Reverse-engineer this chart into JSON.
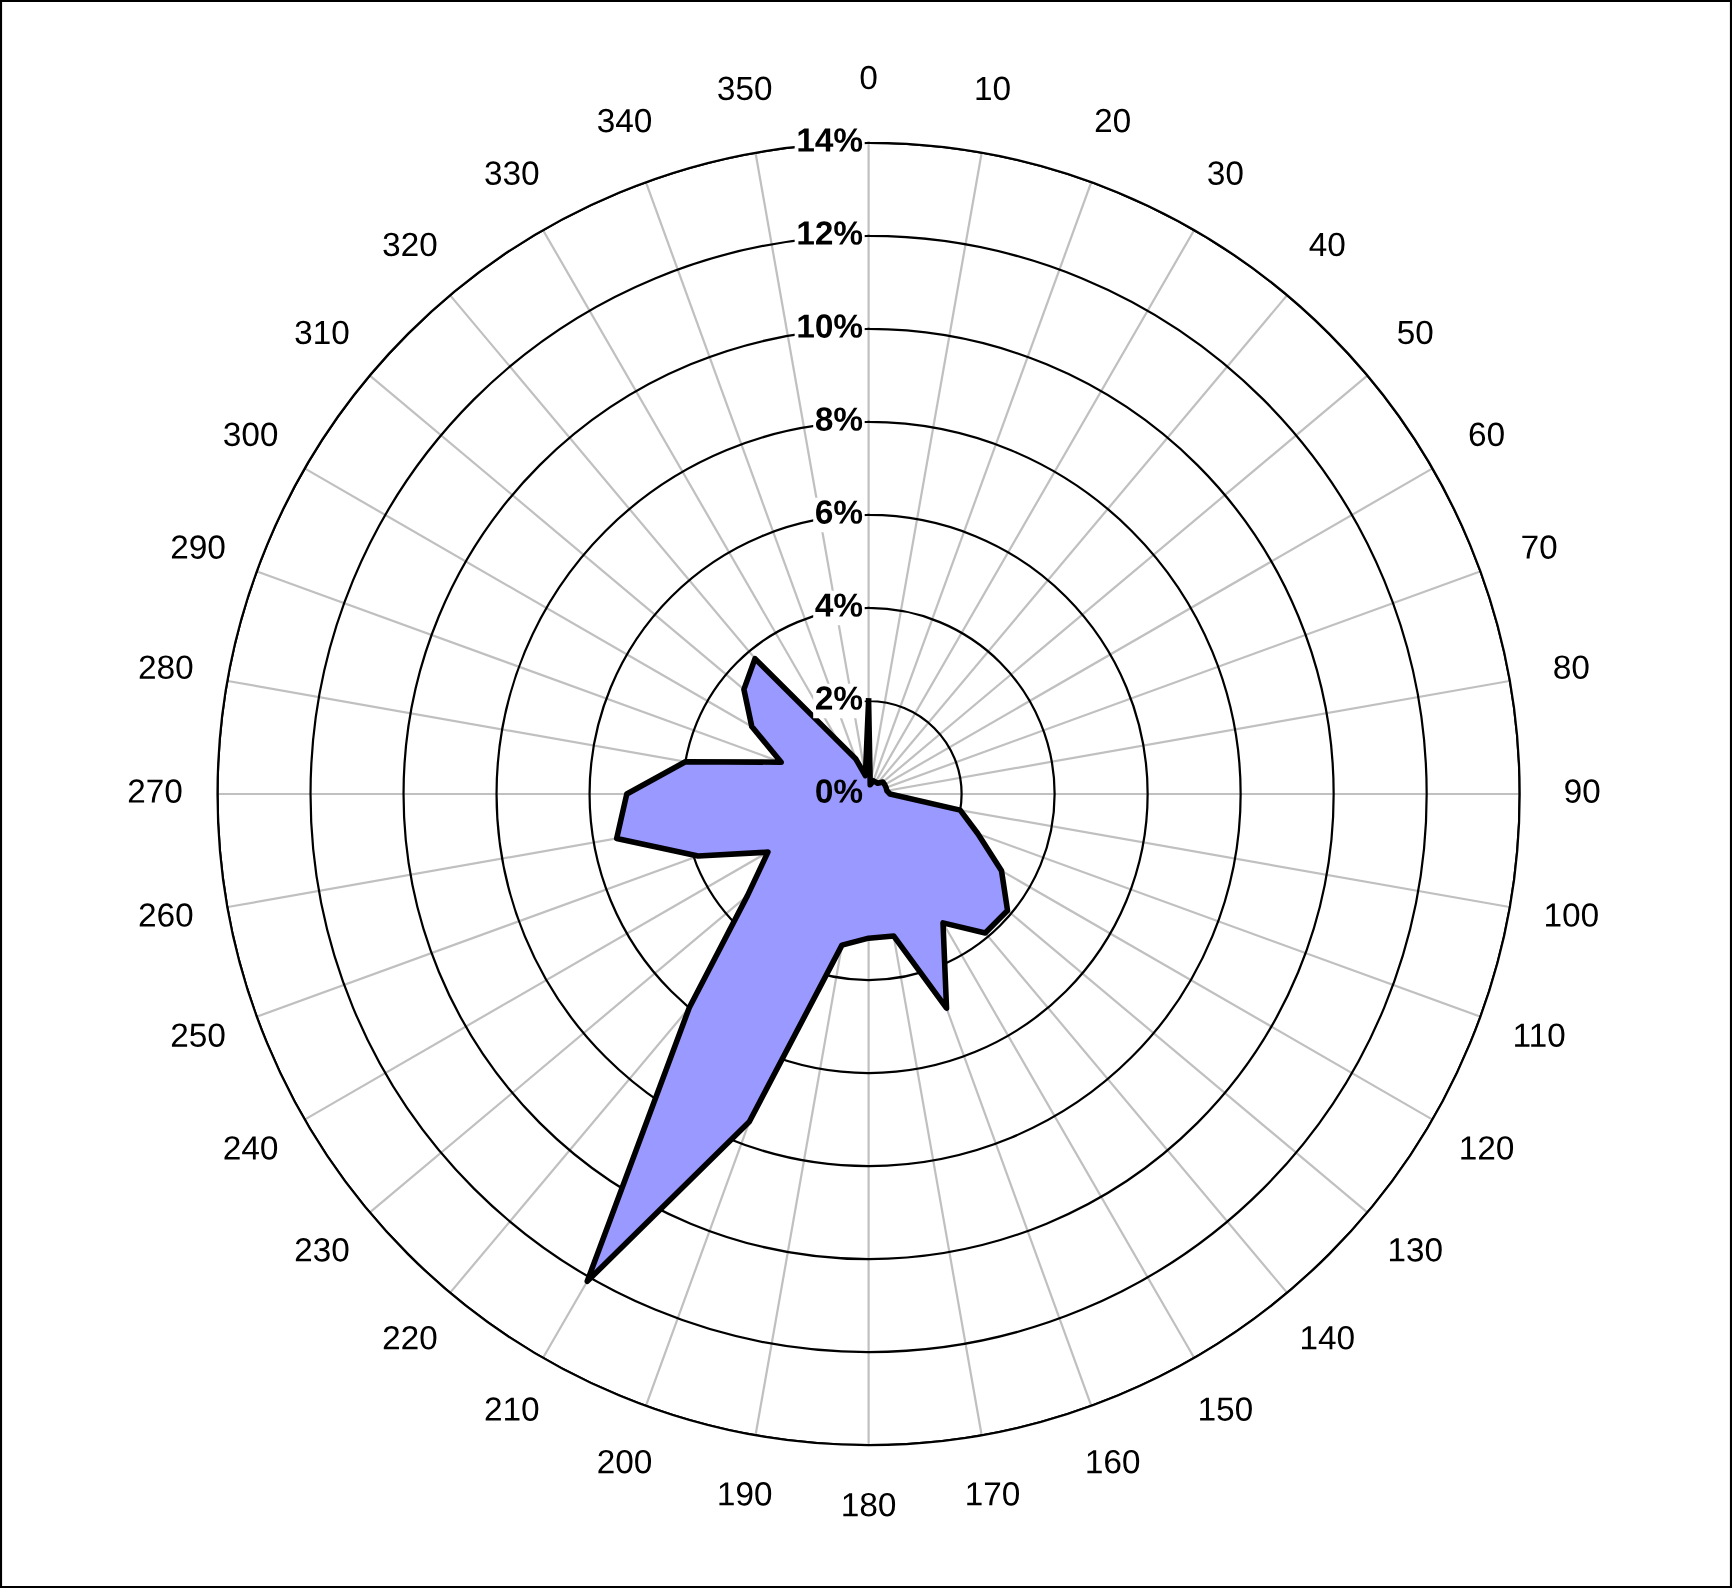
{
  "chart_data": {
    "type": "radar",
    "categories": [
      "0",
      "10",
      "20",
      "30",
      "40",
      "50",
      "60",
      "70",
      "80",
      "90",
      "100",
      "110",
      "120",
      "130",
      "140",
      "150",
      "160",
      "170",
      "180",
      "190",
      "200",
      "210",
      "220",
      "230",
      "240",
      "250",
      "260",
      "270",
      "280",
      "290",
      "300",
      "310",
      "320",
      "330",
      "340",
      "350"
    ],
    "series": [
      {
        "color": "#9999ff",
        "values": [
          2.0,
          0.2,
          0.3,
          0.3,
          0.3,
          0.4,
          0.4,
          0.4,
          0.4,
          0.46,
          2.0,
          2.5,
          3.3,
          3.9,
          3.9,
          3.2,
          4.9,
          3.1,
          3.1,
          3.3,
          7.5,
          12.1,
          6.0,
          3.4,
          2.5,
          3.9,
          5.5,
          5.2,
          4.0,
          2.0,
          2.9,
          3.5,
          3.8,
          1.3,
          0.8,
          0.4
        ]
      }
    ],
    "ylim": [
      0,
      14
    ],
    "yticks": [
      {
        "value": 0,
        "label": "0%"
      },
      {
        "value": 2,
        "label": "2%"
      },
      {
        "value": 4,
        "label": "4%"
      },
      {
        "value": 6,
        "label": "6%"
      },
      {
        "value": 8,
        "label": "8%"
      },
      {
        "value": 10,
        "label": "10%"
      },
      {
        "value": 12,
        "label": "12%"
      },
      {
        "value": 14,
        "label": "14%"
      }
    ],
    "grid": true,
    "marker": "none"
  }
}
